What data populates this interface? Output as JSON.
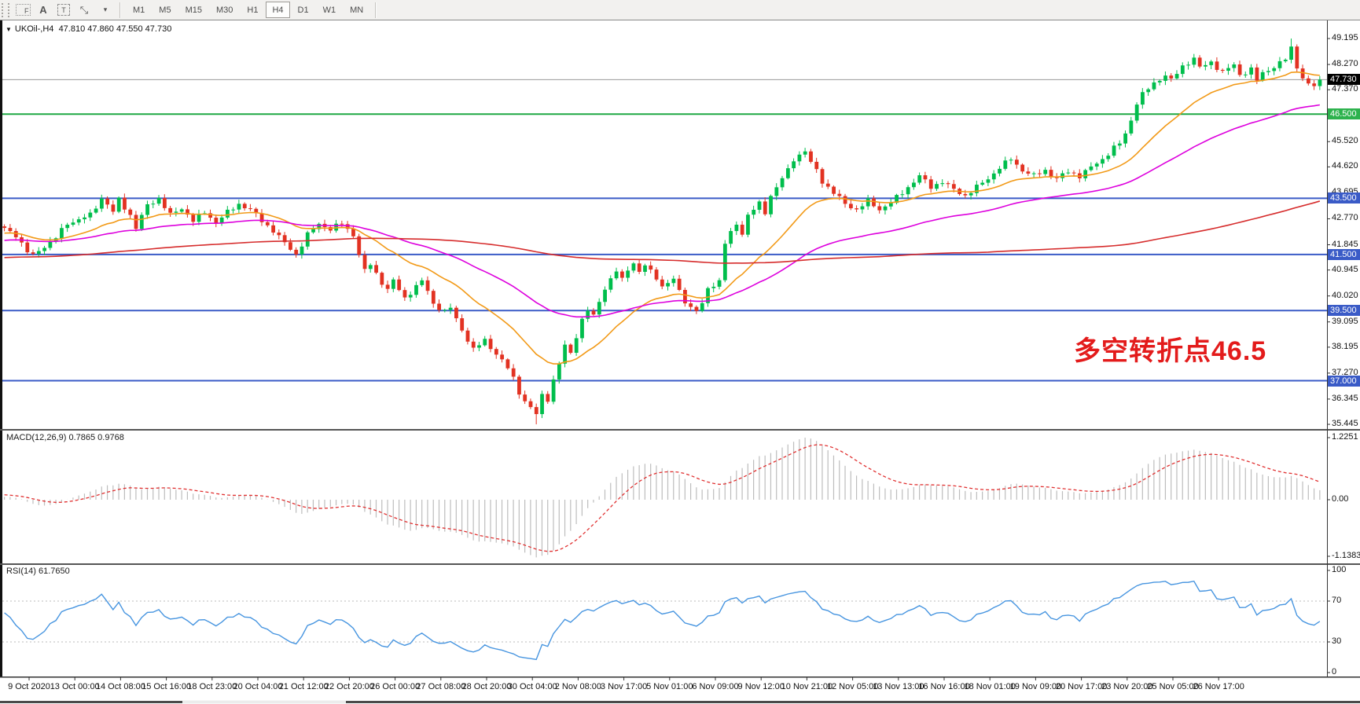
{
  "toolbar": {
    "tools": [
      {
        "name": "fibo-grid-tool",
        "label": "F"
      },
      {
        "name": "text-label-tool",
        "label": "A"
      },
      {
        "name": "text-box-tool",
        "label": "T"
      },
      {
        "name": "cursor-arrows-tool",
        "label": "⤡"
      },
      {
        "name": "dropdown-caret",
        "label": "▾"
      }
    ],
    "timeframes": [
      {
        "label": "M1",
        "active": false
      },
      {
        "label": "M5",
        "active": false
      },
      {
        "label": "M15",
        "active": false
      },
      {
        "label": "M30",
        "active": false
      },
      {
        "label": "H1",
        "active": false
      },
      {
        "label": "H4",
        "active": true
      },
      {
        "label": "D1",
        "active": false
      },
      {
        "label": "W1",
        "active": false
      },
      {
        "label": "MN",
        "active": false
      }
    ]
  },
  "chart_header": {
    "dropdown_icon": "▼",
    "symbol_period": "UKOil-,H4",
    "ohlc": "47.810 47.860 47.550 47.730"
  },
  "chart_data": [
    {
      "type": "candlestick",
      "symbol": "UKOil-",
      "timeframe": "H4",
      "ohlc_display": {
        "open": "47.810",
        "high": "47.860",
        "low": "47.550",
        "close": "47.730"
      },
      "bars_total": 231,
      "bars_per_xtick": 8,
      "x_ticks": [
        "9 Oct 2020",
        "13 Oct 00:00",
        "14 Oct 08:00",
        "15 Oct 16:00",
        "18 Oct 23:00",
        "20 Oct 04:00",
        "21 Oct 12:00",
        "22 Oct 20:00",
        "26 Oct 00:00",
        "27 Oct 08:00",
        "28 Oct 20:00",
        "30 Oct 04:00",
        "2 Nov 08:00",
        "3 Nov 17:00",
        "5 Nov 01:00",
        "6 Nov 09:00",
        "9 Nov 12:00",
        "10 Nov 21:00",
        "12 Nov 05:00",
        "13 Nov 13:00",
        "16 Nov 16:00",
        "18 Nov 01:00",
        "19 Nov 09:00",
        "20 Nov 17:00",
        "23 Nov 20:00",
        "25 Nov 05:00",
        "26 Nov 17:00"
      ],
      "y_ticks": [
        "49.195",
        "48.270",
        "47.370",
        "46.445",
        "45.520",
        "44.620",
        "43.695",
        "42.770",
        "41.845",
        "40.945",
        "40.020",
        "39.095",
        "38.195",
        "37.270",
        "36.345",
        "35.445"
      ],
      "ylim": [
        35.28,
        49.84
      ],
      "high_extreme": {
        "bar": 225,
        "price": 49.195
      },
      "low_extreme": {
        "bar": 93,
        "price": 35.445
      },
      "last_close": 47.73,
      "close_path_anchors": [
        [
          0,
          42.4
        ],
        [
          2,
          42.2
        ],
        [
          4,
          41.6
        ],
        [
          5,
          41.45
        ],
        [
          7,
          41.8
        ],
        [
          9,
          42.1
        ],
        [
          11,
          42.6
        ],
        [
          13,
          42.75
        ],
        [
          15,
          42.9
        ],
        [
          17,
          43.5
        ],
        [
          18,
          43.3
        ],
        [
          19,
          43.0
        ],
        [
          20,
          43.45
        ],
        [
          22,
          42.9
        ],
        [
          23,
          42.45
        ],
        [
          25,
          43.25
        ],
        [
          27,
          43.5
        ],
        [
          29,
          42.9
        ],
        [
          31,
          43.15
        ],
        [
          33,
          42.7
        ],
        [
          35,
          43.0
        ],
        [
          37,
          42.65
        ],
        [
          39,
          43.0
        ],
        [
          41,
          43.3
        ],
        [
          43,
          43.1
        ],
        [
          45,
          42.7
        ],
        [
          47,
          42.35
        ],
        [
          49,
          41.9
        ],
        [
          51,
          41.5
        ],
        [
          53,
          42.2
        ],
        [
          55,
          42.6
        ],
        [
          57,
          42.4
        ],
        [
          59,
          42.6
        ],
        [
          61,
          42.2
        ],
        [
          62,
          41.5
        ],
        [
          63,
          40.9
        ],
        [
          64,
          41.15
        ],
        [
          66,
          40.5
        ],
        [
          67,
          40.25
        ],
        [
          68,
          40.55
        ],
        [
          70,
          39.95
        ],
        [
          71,
          40.15
        ],
        [
          73,
          40.55
        ],
        [
          74,
          40.2
        ],
        [
          75,
          39.75
        ],
        [
          77,
          39.45
        ],
        [
          78,
          39.6
        ],
        [
          79,
          39.2
        ],
        [
          81,
          38.45
        ],
        [
          82,
          38.1
        ],
        [
          84,
          38.45
        ],
        [
          85,
          38.2
        ],
        [
          86,
          37.95
        ],
        [
          88,
          37.45
        ],
        [
          89,
          37.1
        ],
        [
          90,
          36.6
        ],
        [
          91,
          36.25
        ],
        [
          93,
          35.8
        ],
        [
          94,
          36.5
        ],
        [
          95,
          36.35
        ],
        [
          96,
          37.0
        ],
        [
          97,
          37.6
        ],
        [
          98,
          38.25
        ],
        [
          99,
          38.0
        ],
        [
          100,
          38.6
        ],
        [
          101,
          39.15
        ],
        [
          102,
          39.5
        ],
        [
          103,
          39.3
        ],
        [
          104,
          39.85
        ],
        [
          105,
          40.3
        ],
        [
          106,
          40.6
        ],
        [
          107,
          40.9
        ],
        [
          108,
          40.6
        ],
        [
          109,
          41.0
        ],
        [
          110,
          41.2
        ],
        [
          111,
          40.85
        ],
        [
          112,
          41.1
        ],
        [
          114,
          40.7
        ],
        [
          115,
          40.35
        ],
        [
          117,
          40.6
        ],
        [
          118,
          40.2
        ],
        [
          119,
          39.85
        ],
        [
          120,
          39.6
        ],
        [
          121,
          39.5
        ],
        [
          122,
          39.7
        ],
        [
          123,
          40.3
        ],
        [
          125,
          40.55
        ],
        [
          126,
          41.9
        ],
        [
          128,
          42.6
        ],
        [
          129,
          42.25
        ],
        [
          130,
          42.9
        ],
        [
          132,
          43.3
        ],
        [
          133,
          43.0
        ],
        [
          134,
          43.6
        ],
        [
          136,
          44.2
        ],
        [
          137,
          44.5
        ],
        [
          138,
          44.9
        ],
        [
          140,
          45.2
        ],
        [
          141,
          44.75
        ],
        [
          142,
          44.5
        ],
        [
          143,
          44.1
        ],
        [
          145,
          43.7
        ],
        [
          147,
          43.3
        ],
        [
          149,
          43.1
        ],
        [
          151,
          43.4
        ],
        [
          153,
          43.1
        ],
        [
          155,
          43.35
        ],
        [
          157,
          43.7
        ],
        [
          159,
          44.1
        ],
        [
          160,
          44.3
        ],
        [
          162,
          43.9
        ],
        [
          164,
          44.1
        ],
        [
          166,
          43.8
        ],
        [
          168,
          43.6
        ],
        [
          170,
          43.9
        ],
        [
          172,
          44.2
        ],
        [
          174,
          44.6
        ],
        [
          176,
          44.9
        ],
        [
          178,
          44.5
        ],
        [
          180,
          44.3
        ],
        [
          182,
          44.5
        ],
        [
          184,
          44.2
        ],
        [
          186,
          44.45
        ],
        [
          188,
          44.3
        ],
        [
          190,
          44.6
        ],
        [
          192,
          44.9
        ],
        [
          194,
          45.3
        ],
        [
          195,
          45.45
        ],
        [
          196,
          45.8
        ],
        [
          197,
          46.3
        ],
        [
          198,
          46.9
        ],
        [
          199,
          47.2
        ],
        [
          201,
          47.6
        ],
        [
          203,
          47.9
        ],
        [
          204,
          47.7
        ],
        [
          206,
          48.2
        ],
        [
          208,
          48.5
        ],
        [
          209,
          48.15
        ],
        [
          211,
          48.35
        ],
        [
          213,
          48.0
        ],
        [
          215,
          48.25
        ],
        [
          216,
          47.9
        ],
        [
          218,
          48.1
        ],
        [
          219,
          47.7
        ],
        [
          220,
          47.95
        ],
        [
          222,
          48.2
        ],
        [
          224,
          48.45
        ],
        [
          225,
          48.85
        ],
        [
          226,
          48.2
        ],
        [
          227,
          47.8
        ],
        [
          228,
          47.55
        ],
        [
          229,
          47.5
        ],
        [
          230,
          47.73
        ]
      ],
      "candle_up_color": "#00BE4C",
      "candle_down_color": "#E23222",
      "hlines": [
        {
          "value": 46.5,
          "label": "46.500",
          "color": "#1FA844",
          "label_bg": "#2DB24D"
        },
        {
          "value": 43.5,
          "label": "43.500",
          "color": "#3A5BC7",
          "label_bg": "#3A5BC7"
        },
        {
          "value": 41.5,
          "label": "41.500",
          "color": "#3A5BC7",
          "label_bg": "#3A5BC7"
        },
        {
          "value": 39.5,
          "label": "39.500",
          "color": "#3A5BC7",
          "label_bg": "#3A5BC7"
        },
        {
          "value": 37.0,
          "label": "37.000",
          "color": "#3A5BC7",
          "label_bg": "#3A5BC7"
        }
      ],
      "current_price": {
        "value": 47.73,
        "label": "47.730",
        "line_color": "#9A9A9A",
        "label_bg": "#000000"
      },
      "moving_averages": [
        {
          "name": "fast-ma",
          "method": "ema",
          "period": 20,
          "color": "#F29A18"
        },
        {
          "name": "medium-ma",
          "method": "ema",
          "period": 55,
          "color": "#DD00DD"
        },
        {
          "name": "slow-ma",
          "method": "sma",
          "period": 150,
          "color": "#D62C2C"
        }
      ],
      "annotation": {
        "text": "多空转折点46.5",
        "color": "#E31B1B"
      }
    },
    {
      "type": "bar",
      "name": "MACD",
      "label": "MACD(12,26,9) 0.7865 0.9768",
      "params": [
        12,
        26,
        9
      ],
      "macd_value": 0.7865,
      "signal_value": 0.9768,
      "y_ticks": [
        "1.2251",
        "0.00",
        "-1.1383"
      ],
      "y_tick_values": [
        1.2251,
        0.0,
        -1.1383
      ],
      "histogram_color": "#BDBDBD",
      "signal_color": "#E03030",
      "signal_style": "dashed"
    },
    {
      "type": "line",
      "name": "RSI",
      "label": "RSI(14) 61.7650",
      "period": 14,
      "value": 61.765,
      "y_ticks": [
        "100",
        "70",
        "30",
        "0"
      ],
      "y_tick_values": [
        100,
        70,
        30,
        0
      ],
      "levels": [
        70,
        30
      ],
      "level_color": "#BBBBBB",
      "line_color": "#4795E0"
    }
  ]
}
